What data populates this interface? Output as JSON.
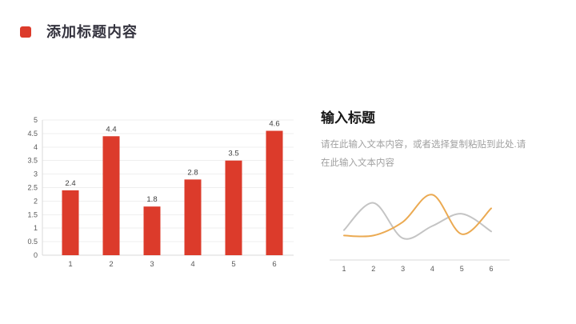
{
  "header": {
    "title": "添加标题内容"
  },
  "text_block": {
    "heading": "输入标题",
    "body": "请在此输入文本内容，或者选择复制粘贴到此处.请在此输入文本内容"
  },
  "colors": {
    "accent_red": "#DC3B2B",
    "title_text": "#34333E",
    "tick_text": "#595959",
    "data_label_text": "#404040",
    "gridline": "#EFEFEF",
    "axis_line": "#D9D9D9",
    "line_gray": "#C4C4C4",
    "line_orange": "#EBAA52"
  },
  "chart_data": [
    {
      "type": "bar",
      "title": "",
      "xlabel": "",
      "ylabel": "",
      "categories": [
        "1",
        "2",
        "3",
        "4",
        "5",
        "6"
      ],
      "values": [
        2.4,
        4.4,
        1.8,
        2.8,
        3.5,
        4.6
      ],
      "data_labels": [
        "2.4",
        "4.4",
        "1.8",
        "2.8",
        "3.5",
        "4.6"
      ],
      "ylim": [
        0,
        5
      ],
      "ytick_step": 0.5,
      "ytick_labels": [
        "0",
        "0.5",
        "1",
        "1.5",
        "2",
        "2.5",
        "3",
        "3.5",
        "4",
        "4.5",
        "5"
      ],
      "grid": true,
      "legend": "none",
      "bar_color": "#DC3B2B"
    },
    {
      "type": "line",
      "title": "",
      "xlabel": "",
      "ylabel": "",
      "categories": [
        "1",
        "2",
        "3",
        "4",
        "5",
        "6"
      ],
      "series": [
        {
          "name": "gray-series",
          "color": "#C4C4C4",
          "values": [
            2.2,
            4.2,
            1.6,
            2.5,
            3.4,
            2.1
          ]
        },
        {
          "name": "orange-series",
          "color": "#EBAA52",
          "values": [
            1.8,
            1.8,
            2.8,
            4.8,
            1.9,
            3.8
          ]
        }
      ],
      "ylim": [
        0,
        5
      ],
      "grid": false,
      "smooth": true,
      "legend": "none",
      "yaxis_visible": false
    }
  ]
}
